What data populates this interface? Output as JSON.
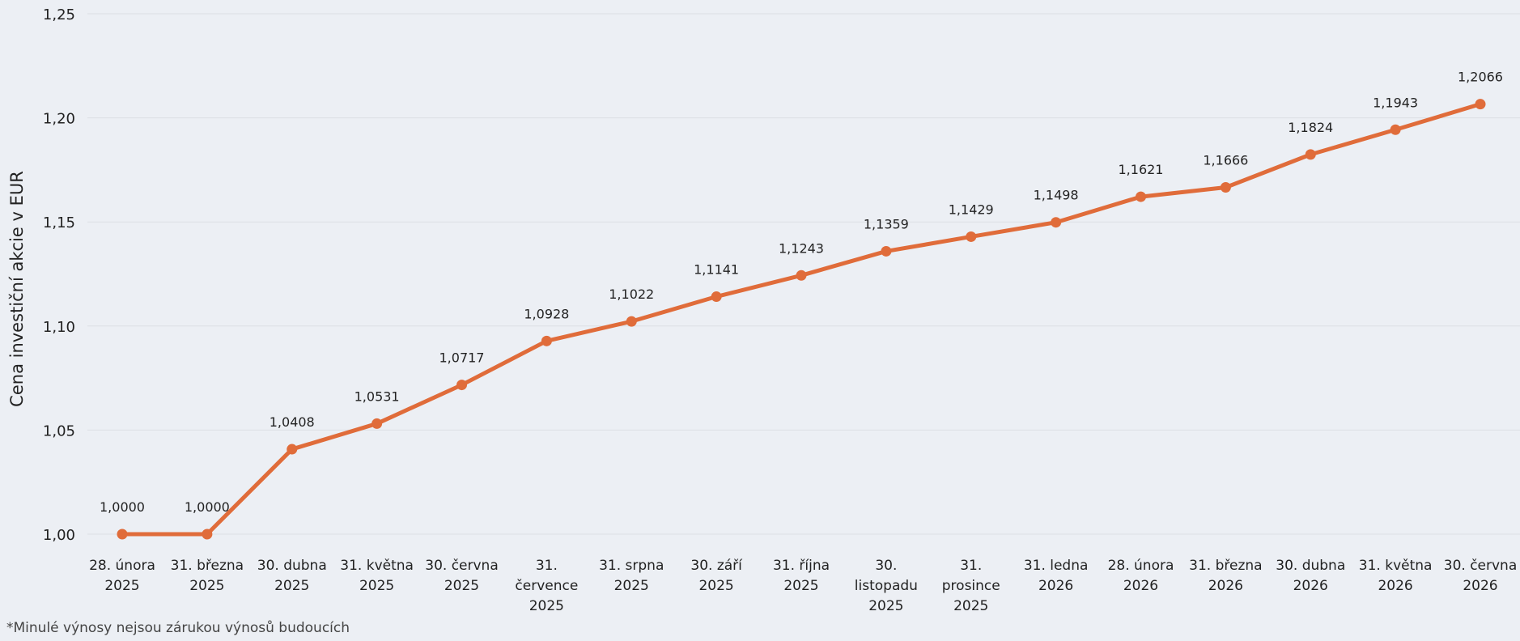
{
  "chart_data": {
    "type": "line",
    "ylabel": "Cena investiční akcie v EUR",
    "ylim": [
      1.0,
      1.25
    ],
    "yticks": [
      "1,00",
      "1,05",
      "1,10",
      "1,15",
      "1,20",
      "1,25"
    ],
    "grid": true,
    "categories": [
      [
        "28. února",
        "2025"
      ],
      [
        "31. března",
        "2025"
      ],
      [
        "30. dubna",
        "2025"
      ],
      [
        "31. května",
        "2025"
      ],
      [
        "30. června",
        "2025"
      ],
      [
        "31.",
        "července",
        "2025"
      ],
      [
        "31. srpna",
        "2025"
      ],
      [
        "30. září",
        "2025"
      ],
      [
        "31. října",
        "2025"
      ],
      [
        "30.",
        "listopadu",
        "2025"
      ],
      [
        "31.",
        "prosince",
        "2025"
      ],
      [
        "31. ledna",
        "2026"
      ],
      [
        "28. února",
        "2026"
      ],
      [
        "31. března",
        "2026"
      ],
      [
        "30. dubna",
        "2026"
      ],
      [
        "31. května",
        "2026"
      ],
      [
        "30. června",
        "2026"
      ]
    ],
    "values": [
      1.0,
      1.0,
      1.0408,
      1.0531,
      1.0717,
      1.0928,
      1.1022,
      1.1141,
      1.1243,
      1.1359,
      1.1429,
      1.1498,
      1.1621,
      1.1666,
      1.1824,
      1.1943,
      1.2066
    ],
    "data_labels": [
      "1,0000",
      "1,0000",
      "1,0408",
      "1,0531",
      "1,0717",
      "1,0928",
      "1,1022",
      "1,1141",
      "1,1243",
      "1,1359",
      "1,1429",
      "1,1498",
      "1,1621",
      "1,1666",
      "1,1824",
      "1,1943",
      "1,2066"
    ],
    "line_color": "#e06c3a",
    "grid_color": "#dcdfe4",
    "footnote": "*Minulé výnosy nejsou zárukou výnosů budoucích"
  }
}
